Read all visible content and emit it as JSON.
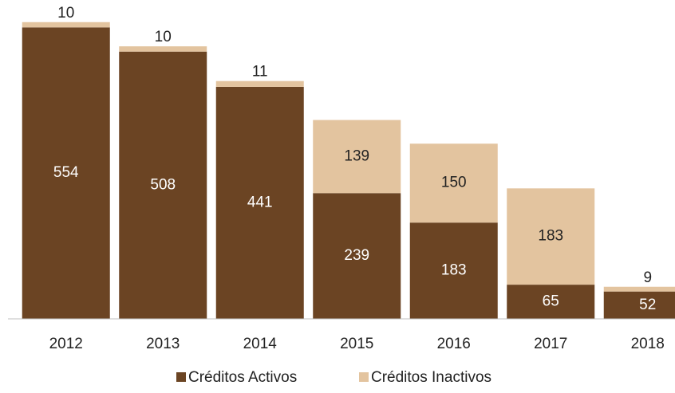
{
  "chart_data": {
    "type": "stacked_bar",
    "categories": [
      "2012",
      "2013",
      "2014",
      "2015",
      "2016",
      "2017",
      "2018"
    ],
    "series": [
      {
        "name": "Créditos Activos",
        "color": "#6b4423",
        "values": [
          554,
          508,
          441,
          239,
          183,
          65,
          52
        ]
      },
      {
        "name": "Créditos Inactivos",
        "color": "#e3c49f",
        "values": [
          10,
          10,
          11,
          139,
          150,
          183,
          9
        ]
      }
    ],
    "ylim": [
      0,
      600
    ]
  }
}
